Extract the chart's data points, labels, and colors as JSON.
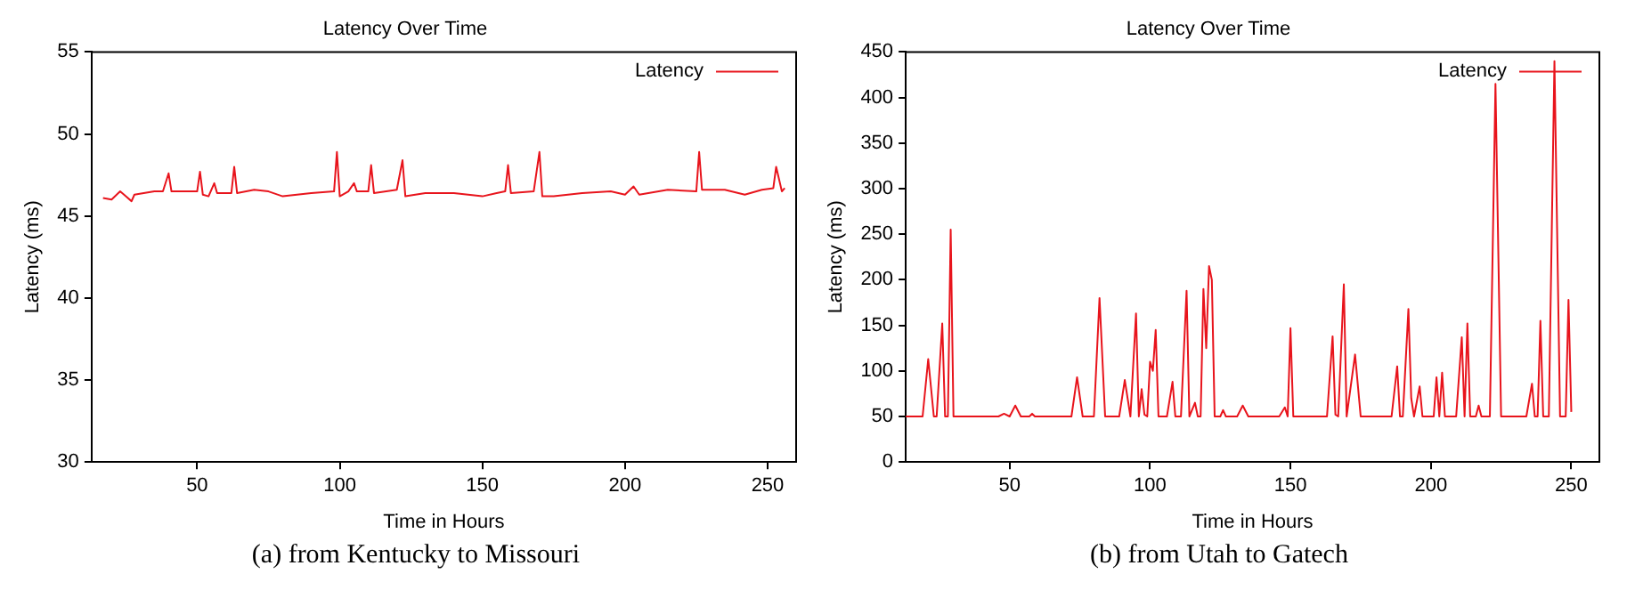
{
  "chart_data": [
    {
      "type": "line",
      "title": "Latency Over Time",
      "xlabel": "Time in Hours",
      "ylabel": "Latency (ms)",
      "annotations": [
        "(a) from Kentucky to Missouri"
      ],
      "xlim": [
        13,
        260
      ],
      "xticks": [
        50,
        100,
        150,
        200,
        250
      ],
      "ylim": [
        30,
        55
      ],
      "yticks": [
        30,
        35,
        40,
        45,
        50,
        55
      ],
      "grid": false,
      "legend": "top right",
      "marker": "none",
      "line_style": "solid",
      "series": [
        {
          "name": "Latency",
          "color": "#e8141c",
          "x": [
            17,
            20,
            23,
            25,
            27,
            28,
            35,
            38,
            40,
            41,
            50,
            51,
            52,
            54,
            56,
            57,
            62,
            63,
            64,
            70,
            75,
            80,
            90,
            98,
            99,
            100,
            103,
            105,
            106,
            110,
            111,
            112,
            120,
            122,
            123,
            130,
            140,
            150,
            155,
            158,
            159,
            160,
            168,
            170,
            171,
            175,
            185,
            195,
            200,
            203,
            205,
            215,
            225,
            226,
            227,
            235,
            242,
            248,
            252,
            253,
            255,
            256
          ],
          "values": [
            46.1,
            46.0,
            46.5,
            46.2,
            45.9,
            46.3,
            46.5,
            46.5,
            47.6,
            46.5,
            46.5,
            47.7,
            46.3,
            46.2,
            47.0,
            46.4,
            46.4,
            48.0,
            46.4,
            46.6,
            46.5,
            46.2,
            46.4,
            46.5,
            48.9,
            46.2,
            46.5,
            47.0,
            46.5,
            46.5,
            48.1,
            46.4,
            46.6,
            48.4,
            46.2,
            46.4,
            46.4,
            46.2,
            46.4,
            46.5,
            48.1,
            46.4,
            46.5,
            48.9,
            46.2,
            46.2,
            46.4,
            46.5,
            46.3,
            46.8,
            46.3,
            46.6,
            46.5,
            48.9,
            46.6,
            46.6,
            46.3,
            46.6,
            46.7,
            48.0,
            46.5,
            46.7
          ]
        }
      ]
    },
    {
      "type": "line",
      "title": "Latency Over Time",
      "xlabel": "Time in Hours",
      "ylabel": "Latency (ms)",
      "annotations": [
        "(b) from Utah to Gatech"
      ],
      "xlim": [
        13,
        260
      ],
      "xticks": [
        50,
        100,
        150,
        200,
        250
      ],
      "ylim": [
        0,
        450
      ],
      "yticks": [
        0,
        50,
        100,
        150,
        200,
        250,
        300,
        350,
        400,
        450
      ],
      "grid": false,
      "legend": "top right",
      "marker": "none",
      "line_style": "solid",
      "series": [
        {
          "name": "Latency",
          "color": "#e8141c",
          "x": [
            13,
            19,
            21,
            23,
            24,
            26,
            27,
            28,
            29,
            30,
            46,
            48,
            50,
            52,
            54,
            57,
            58,
            59,
            72,
            74,
            76,
            80,
            82,
            84,
            89,
            91,
            93,
            95,
            96,
            97,
            98,
            99,
            100,
            101,
            102,
            103,
            106,
            108,
            109,
            111,
            113,
            114,
            116,
            117,
            118,
            119,
            120,
            121,
            122,
            123,
            125,
            126,
            127,
            131,
            133,
            135,
            146,
            148,
            149,
            150,
            151,
            163,
            165,
            166,
            167,
            169,
            170,
            173,
            175,
            186,
            188,
            189,
            190,
            192,
            193,
            194,
            196,
            197,
            201,
            202,
            203,
            204,
            205,
            209,
            211,
            212,
            213,
            214,
            216,
            217,
            218,
            221,
            223,
            225,
            234,
            236,
            237,
            238,
            239,
            240,
            242,
            244,
            246,
            248,
            249,
            250
          ],
          "values": [
            50,
            50,
            113,
            50,
            50,
            152,
            50,
            50,
            255,
            50,
            50,
            53,
            50,
            62,
            50,
            50,
            53,
            50,
            50,
            93,
            50,
            50,
            180,
            50,
            50,
            90,
            50,
            163,
            50,
            80,
            52,
            50,
            110,
            100,
            145,
            50,
            50,
            88,
            50,
            50,
            188,
            50,
            65,
            50,
            50,
            190,
            125,
            215,
            200,
            50,
            50,
            57,
            50,
            50,
            62,
            50,
            50,
            60,
            50,
            147,
            50,
            50,
            138,
            52,
            50,
            195,
            50,
            118,
            50,
            50,
            105,
            50,
            50,
            168,
            70,
            50,
            83,
            50,
            50,
            93,
            50,
            98,
            50,
            50,
            137,
            50,
            152,
            50,
            50,
            62,
            50,
            50,
            415,
            50,
            50,
            86,
            50,
            50,
            155,
            50,
            50,
            440,
            50,
            50,
            178,
            55
          ]
        }
      ]
    }
  ]
}
